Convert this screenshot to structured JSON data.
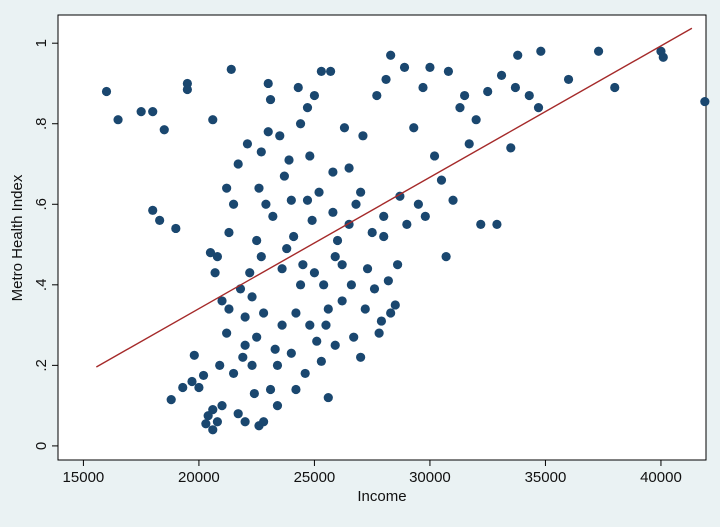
{
  "chart_data": {
    "type": "scatter",
    "x_label": "Income",
    "y_label": "Metro Health Index",
    "xlim": [
      13900,
      41950
    ],
    "ylim": [
      -0.035,
      1.07
    ],
    "xticks": [
      15000,
      20000,
      25000,
      30000,
      35000,
      40000
    ],
    "yticks": [
      0,
      {
        "value": 0.2,
        "label": ".2"
      },
      {
        "value": 0.4,
        "label": ".4"
      },
      {
        "value": 0.6,
        "label": ".6"
      },
      {
        "value": 0.8,
        "label": ".8"
      },
      1
    ],
    "color": "#1a476f",
    "x": [
      16000,
      16500,
      17500,
      18000,
      18500,
      18000,
      18300,
      19000,
      19500,
      19500,
      20600,
      21400,
      18800,
      19300,
      19700,
      19800,
      20000,
      20200,
      20500,
      20700,
      20800,
      20600,
      20300,
      20400,
      20600,
      20800,
      21000,
      21200,
      21300,
      21200,
      21300,
      21500,
      21700,
      21800,
      22000,
      22000,
      22100,
      22200,
      22300,
      22400,
      22500,
      22600,
      22700,
      22800,
      22900,
      23000,
      23000,
      23100,
      23200,
      23300,
      23400,
      23500,
      23600,
      23700,
      23900,
      24000,
      24100,
      24200,
      24300,
      24400,
      24500,
      24600,
      24700,
      24800,
      24900,
      25000,
      25100,
      25200,
      25300,
      25400,
      25500,
      25600,
      25700,
      25800,
      25900,
      26000,
      26200,
      26300,
      26500,
      26700,
      26800,
      27000,
      27100,
      27300,
      27500,
      27700,
      27900,
      28000,
      28100,
      28200,
      28300,
      28500,
      28700,
      28900,
      29000,
      29300,
      29500,
      29700,
      29800,
      30000,
      30200,
      30500,
      30700,
      30800,
      31000,
      31300,
      31500,
      31700,
      32000,
      32200,
      32500,
      32900,
      33100,
      33500,
      33700,
      33800,
      34300,
      34700,
      34800,
      36000,
      37300,
      38000,
      40000,
      40100,
      41900,
      21000,
      21500,
      21700,
      22000,
      22300,
      22600,
      22800,
      23100,
      23400,
      23600,
      24000,
      24200,
      24400,
      24800,
      25000,
      25300,
      25600,
      25900,
      26200,
      26500,
      27000,
      27200,
      27600,
      28000,
      28300,
      28600,
      21900,
      22500,
      23800,
      24700,
      25800,
      26600,
      27800,
      20900,
      22700
    ],
    "values": [
      0.88,
      0.81,
      0.83,
      0.83,
      0.785,
      0.585,
      0.56,
      0.54,
      0.9,
      0.885,
      0.81,
      0.935,
      0.115,
      0.145,
      0.16,
      0.225,
      0.145,
      0.175,
      0.48,
      0.43,
      0.47,
      0.09,
      0.055,
      0.075,
      0.04,
      0.06,
      0.1,
      0.28,
      0.34,
      0.64,
      0.53,
      0.6,
      0.7,
      0.39,
      0.32,
      0.25,
      0.75,
      0.43,
      0.2,
      0.13,
      0.51,
      0.64,
      0.73,
      0.33,
      0.6,
      0.78,
      0.9,
      0.86,
      0.57,
      0.24,
      0.1,
      0.77,
      0.44,
      0.67,
      0.71,
      0.61,
      0.52,
      0.33,
      0.89,
      0.8,
      0.45,
      0.18,
      0.84,
      0.72,
      0.56,
      0.87,
      0.26,
      0.63,
      0.93,
      0.4,
      0.3,
      0.12,
      0.93,
      0.58,
      0.47,
      0.51,
      0.36,
      0.79,
      0.69,
      0.27,
      0.6,
      0.22,
      0.77,
      0.44,
      0.53,
      0.87,
      0.31,
      0.52,
      0.91,
      0.41,
      0.97,
      0.35,
      0.62,
      0.94,
      0.55,
      0.79,
      0.6,
      0.89,
      0.57,
      0.94,
      0.72,
      0.66,
      0.47,
      0.93,
      0.61,
      0.84,
      0.87,
      0.75,
      0.81,
      0.55,
      0.88,
      0.55,
      0.92,
      0.74,
      0.89,
      0.97,
      0.87,
      0.84,
      0.98,
      0.91,
      0.98,
      0.89,
      0.98,
      0.965,
      0.855,
      0.36,
      0.18,
      0.08,
      0.06,
      0.37,
      0.05,
      0.06,
      0.14,
      0.2,
      0.3,
      0.23,
      0.14,
      0.4,
      0.3,
      0.43,
      0.21,
      0.34,
      0.25,
      0.45,
      0.55,
      0.63,
      0.34,
      0.39,
      0.57,
      0.33,
      0.45,
      0.22,
      0.27,
      0.49,
      0.61,
      0.68,
      0.4,
      0.28,
      0.2,
      0.47
    ],
    "fit_line": {
      "x": [
        15560,
        41340
      ],
      "values": [
        0.196,
        1.037
      ],
      "color": "#a52a2a"
    }
  }
}
